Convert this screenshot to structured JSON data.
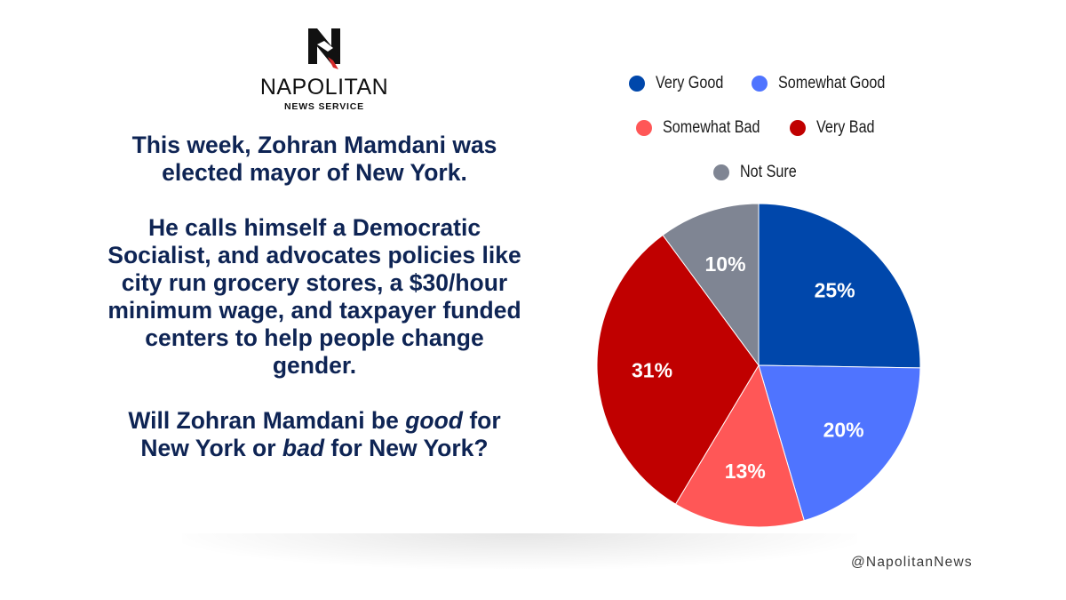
{
  "brand": {
    "name": "NAPOLITAN",
    "subtitle": "NEWS SERVICE",
    "logo_letter": "N"
  },
  "question": {
    "line1": "This week, Zohran Mamdani was elected mayor of New York.",
    "line2": "He calls himself a Democratic Socialist, and advocates policies like city run grocery stores, a $30/hour minimum wage, and taxpayer funded centers to help people change gender.",
    "line3_pre_good": "Will Zohran Mamdani be ",
    "line3_good": "good",
    "line3_mid": " for New York or ",
    "line3_bad": "bad",
    "line3_post": " for New York?"
  },
  "handle": "@NapolitanNews",
  "chart_data": {
    "type": "pie",
    "title": "",
    "slices": [
      {
        "label": "Very Good",
        "value": 25,
        "display": "25%",
        "color": "#0047ab"
      },
      {
        "label": "Somewhat Good",
        "value": 20,
        "display": "20%",
        "color": "#4f74ff"
      },
      {
        "label": "Somewhat Bad",
        "value": 13,
        "display": "13%",
        "color": "#ff5757"
      },
      {
        "label": "Very Bad",
        "value": 31,
        "display": "31%",
        "color": "#c00000"
      },
      {
        "label": "Not Sure",
        "value": 10,
        "display": "10%",
        "color": "#7f8593"
      }
    ],
    "start": "12 o'clock",
    "direction": "clockwise",
    "legend_position": "top"
  }
}
